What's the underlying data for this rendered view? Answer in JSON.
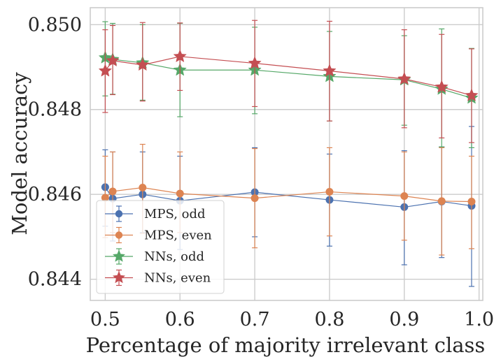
{
  "chart_data": {
    "type": "line",
    "title": "",
    "xlabel": "Percentage of majority irrelevant class",
    "ylabel": "Model accuracy",
    "xlim": [
      0.48,
      1.005
    ],
    "ylim": [
      0.8435,
      0.8504
    ],
    "xticks": [
      0.5,
      0.6,
      0.7,
      0.8,
      0.9,
      1.0
    ],
    "xtick_labels": [
      "0.5",
      "0.6",
      "0.7",
      "0.8",
      "0.9",
      "1.0"
    ],
    "yticks": [
      0.844,
      0.846,
      0.848,
      0.85
    ],
    "ytick_labels": [
      "0.844",
      "0.846",
      "0.848",
      "0.850"
    ],
    "grid": true,
    "legend_position": "lower-left",
    "series": [
      {
        "name": "MPS, odd",
        "color": "#4c72b0",
        "marker": "circle",
        "x": [
          0.5,
          0.51,
          0.55,
          0.6,
          0.7,
          0.8,
          0.9,
          0.95,
          0.99
        ],
        "y": [
          0.84617,
          0.8459,
          0.846,
          0.84585,
          0.84605,
          0.84587,
          0.8457,
          0.84583,
          0.84573
        ],
        "err_low": [
          0.84525,
          0.8449,
          0.8451,
          0.8447,
          0.845,
          0.84478,
          0.84434,
          0.84451,
          0.84383
        ],
        "err_high": [
          0.84705,
          0.847,
          0.847,
          0.8469,
          0.8471,
          0.84695,
          0.84703,
          0.84712,
          0.8476
        ]
      },
      {
        "name": "MPS, even",
        "color": "#dd8452",
        "marker": "circle",
        "x": [
          0.5,
          0.51,
          0.55,
          0.6,
          0.7,
          0.8,
          0.9,
          0.95,
          0.99
        ],
        "y": [
          0.84592,
          0.84607,
          0.84616,
          0.84602,
          0.84591,
          0.84606,
          0.84596,
          0.84584,
          0.84583
        ],
        "err_low": [
          0.84498,
          0.8451,
          0.84508,
          0.8451,
          0.84474,
          0.84502,
          0.84492,
          0.84457,
          0.84472
        ],
        "err_high": [
          0.8469,
          0.847,
          0.84718,
          0.847,
          0.84708,
          0.8471,
          0.847,
          0.8471,
          0.8469
        ]
      },
      {
        "name": "NNs, odd",
        "color": "#55a868",
        "marker": "star",
        "x": [
          0.5,
          0.51,
          0.55,
          0.6,
          0.7,
          0.8,
          0.9,
          0.95,
          0.99
        ],
        "y": [
          0.84922,
          0.84918,
          0.8491,
          0.84893,
          0.84893,
          0.84878,
          0.8487,
          0.84848,
          0.84827
        ],
        "err_low": [
          0.84832,
          0.84836,
          0.84822,
          0.84783,
          0.8479,
          0.84773,
          0.84763,
          0.84712,
          0.8471
        ],
        "err_high": [
          0.85007,
          0.85003,
          0.85,
          0.85003,
          0.84994,
          0.84984,
          0.84974,
          0.8499,
          0.84944
        ]
      },
      {
        "name": "NNs, even",
        "color": "#c44e52",
        "marker": "star",
        "x": [
          0.5,
          0.51,
          0.55,
          0.6,
          0.7,
          0.8,
          0.9,
          0.95,
          0.99
        ],
        "y": [
          0.84891,
          0.84915,
          0.84905,
          0.84925,
          0.84909,
          0.84891,
          0.84872,
          0.84853,
          0.84833
        ],
        "err_low": [
          0.84793,
          0.84835,
          0.8482,
          0.84845,
          0.84807,
          0.84773,
          0.84757,
          0.84733,
          0.84722
        ],
        "err_high": [
          0.84988,
          0.84998,
          0.85005,
          0.85004,
          0.8501,
          0.85008,
          0.84988,
          0.84977,
          0.84943
        ]
      }
    ]
  }
}
